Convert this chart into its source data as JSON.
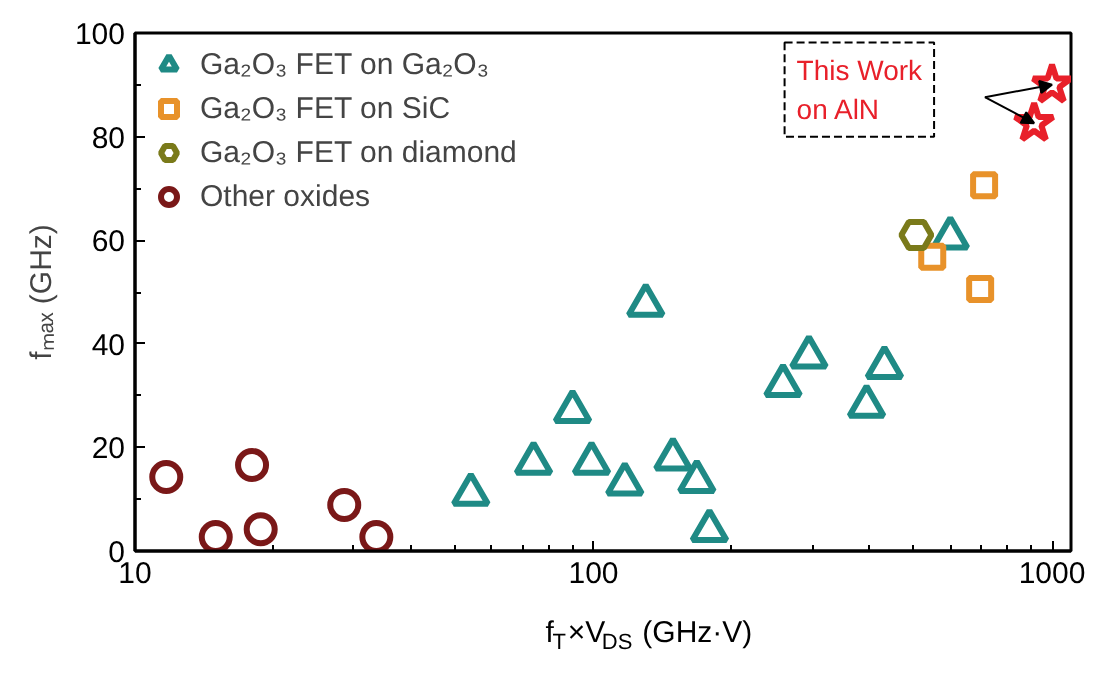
{
  "chart_data": {
    "type": "scatter",
    "xlabel": "f$_{T}$×V$_{DS}$ (GHz·V)",
    "ylabel": "fₘₐₓ (GHz)",
    "log": "x",
    "xlim": [
      10,
      1100
    ],
    "xticks": [
      10,
      100,
      1000
    ],
    "ylim": [
      0,
      100
    ],
    "yticks": [
      0,
      20,
      40,
      60,
      80,
      100
    ],
    "grid": false,
    "legend": "top left",
    "series": [
      {
        "name": "Ga₂O₃ FET on Ga₂O₃",
        "color": "#1f8a85",
        "marker": "triangle",
        "x": [
          54,
          74,
          90,
          99,
          117,
          130,
          149,
          168,
          179,
          259,
          295,
          394,
          431,
          600
        ],
        "values": [
          11,
          17,
          27,
          17,
          13,
          47.5,
          17.8,
          13.5,
          4,
          32,
          37.5,
          28,
          35.5,
          60.5
        ]
      },
      {
        "name": "Ga₂O₃ FET on SiC",
        "color": "#e8922a",
        "marker": "square",
        "x": [
          548,
          697,
          711
        ],
        "values": [
          56.8,
          50.6,
          70.6
        ]
      },
      {
        "name": "Ga₂O₃ FET on diamond",
        "color": "#7a7a1a",
        "x": [
          506
        ],
        "values": [
          61
        ]
      },
      {
        "name": "Other oxides",
        "color": "#7a1818",
        "marker": "circle",
        "x": [
          11.7,
          15,
          18,
          18.8,
          28.6,
          33.6
        ],
        "values": [
          14.3,
          2.7,
          16.6,
          4.2,
          8.9,
          2.7
        ]
      },
      {
        "name": "This Work\non AlN",
        "color": "#e8202a",
        "marker": "star",
        "x": [
          914,
          1000
        ],
        "values": [
          82.6,
          90
        ]
      }
    ]
  }
}
